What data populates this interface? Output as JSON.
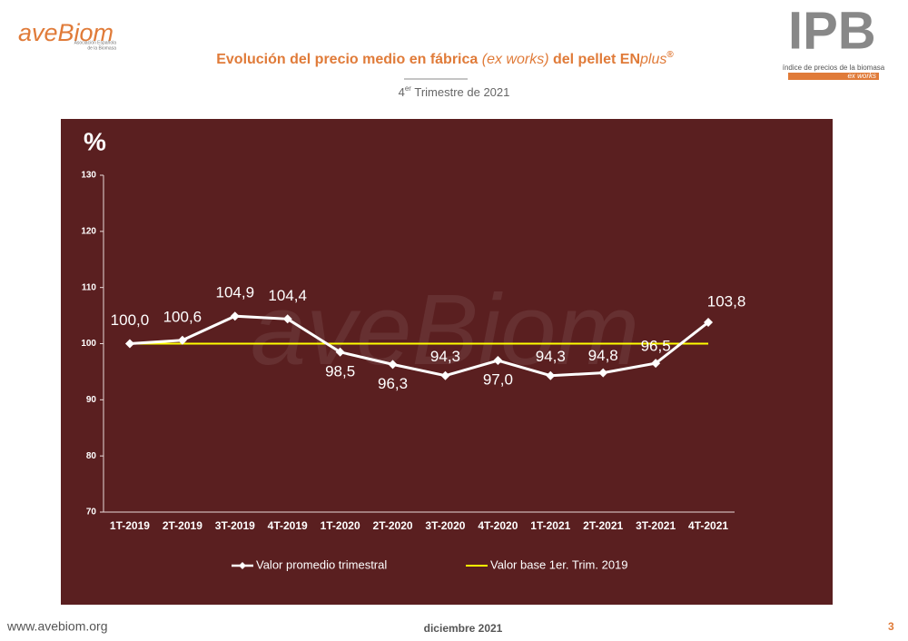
{
  "logo": {
    "name": "aveBiom",
    "tagline": [
      "Asociación Española",
      "de la Biomasa"
    ]
  },
  "index_logo": {
    "letters": "IPB",
    "caption": "índice de precios de la biomasa",
    "tag": "ex works"
  },
  "footer": {
    "website": "www.avebiom.org",
    "date": "diciembre 2021",
    "page": "3"
  },
  "chart_data": {
    "type": "line",
    "title": [
      "Evolución del precio medio en fábrica",
      "(ex works)",
      "del pellet",
      "EN",
      "plus",
      "®"
    ],
    "subtitle": [
      "4",
      "er",
      "Trimestre de 2021"
    ],
    "y_label": "%",
    "categories": [
      "1T-2019",
      "2T-2019",
      "3T-2019",
      "4T-2019",
      "1T-2020",
      "2T-2020",
      "3T-2020",
      "4T-2020",
      "1T-2021",
      "2T-2021",
      "3T-2021",
      "4T-2021"
    ],
    "series": [
      {
        "name": "Valor promedio trimestral",
        "color": "#ffffff",
        "marker": "diamond",
        "values": [
          100.0,
          100.6,
          104.9,
          104.4,
          98.5,
          96.3,
          94.3,
          97.0,
          94.3,
          94.8,
          96.5,
          103.8
        ],
        "value_labels": [
          "100,0",
          "100,6",
          "104,9",
          "104,4",
          "98,5",
          "96,3",
          "94,3",
          "97,0",
          "94,3",
          "94,8",
          "96,5",
          "103,8"
        ]
      },
      {
        "name": "Valor base 1er. Trim. 2019",
        "color": "#ffff00",
        "values": [
          100,
          100,
          100,
          100,
          100,
          100,
          100,
          100,
          100,
          100,
          100,
          100
        ]
      }
    ],
    "ylim": [
      70,
      130
    ],
    "yticks": [
      70,
      80,
      90,
      100,
      110,
      120,
      130
    ],
    "grid": false,
    "legend": "bottom",
    "background": "#5a1f20"
  }
}
